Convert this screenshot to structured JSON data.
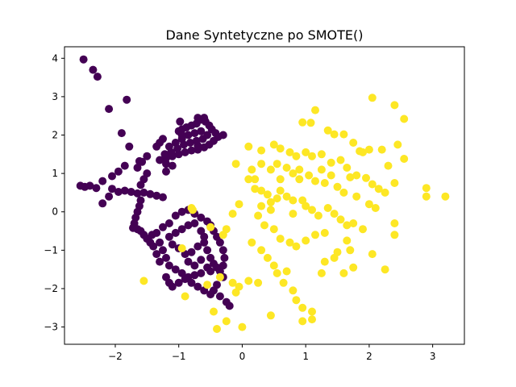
{
  "chart_data": {
    "type": "scatter",
    "title": "Dane Syntetyczne po SMOTE()",
    "xlabel": "",
    "ylabel": "",
    "xlim": [
      -2.8,
      3.5
    ],
    "ylim": [
      -3.45,
      4.3
    ],
    "xticks": [
      -2,
      -1,
      0,
      1,
      2,
      3
    ],
    "xtick_labels": [
      "−2",
      "−1",
      "0",
      "1",
      "2",
      "3"
    ],
    "yticks": [
      -3,
      -2,
      -1,
      0,
      1,
      2,
      3,
      4
    ],
    "ytick_labels": [
      "−3",
      "−2",
      "−1",
      "0",
      "1",
      "2",
      "3",
      "4"
    ],
    "grid": false,
    "legend": "none",
    "series": [
      {
        "color": "#440154",
        "points": [
          [
            -2.5,
            3.97
          ],
          [
            -2.35,
            3.7
          ],
          [
            -2.28,
            3.52
          ],
          [
            -2.1,
            2.68
          ],
          [
            -1.82,
            2.92
          ],
          [
            -1.9,
            2.05
          ],
          [
            -1.78,
            1.7
          ],
          [
            -1.62,
            1.32
          ],
          [
            -1.85,
            1.2
          ],
          [
            -1.95,
            1.05
          ],
          [
            -2.05,
            0.93
          ],
          [
            -2.2,
            0.8
          ],
          [
            -2.55,
            0.68
          ],
          [
            -2.48,
            0.65
          ],
          [
            -2.4,
            0.68
          ],
          [
            -2.3,
            0.62
          ],
          [
            -2.2,
            0.22
          ],
          [
            -2.1,
            0.4
          ],
          [
            -2.05,
            0.6
          ],
          [
            -1.95,
            0.52
          ],
          [
            -1.85,
            0.55
          ],
          [
            -1.75,
            0.52
          ],
          [
            -1.65,
            0.48
          ],
          [
            -1.55,
            0.5
          ],
          [
            -1.45,
            0.46
          ],
          [
            -1.35,
            0.42
          ],
          [
            -1.25,
            0.38
          ],
          [
            -1.6,
            0.7
          ],
          [
            -1.55,
            0.85
          ],
          [
            -1.5,
            1.0
          ],
          [
            -1.65,
            1.15
          ],
          [
            -1.58,
            1.3
          ],
          [
            -1.5,
            1.45
          ],
          [
            -1.6,
            0.3
          ],
          [
            -1.62,
            0.15
          ],
          [
            -1.65,
            0.0
          ],
          [
            -1.68,
            -0.15
          ],
          [
            -1.7,
            -0.3
          ],
          [
            -1.72,
            -0.42
          ],
          [
            -1.65,
            -0.45
          ],
          [
            -1.6,
            -0.5
          ],
          [
            -1.55,
            -0.6
          ],
          [
            -1.5,
            -0.7
          ],
          [
            -1.45,
            -0.8
          ],
          [
            -1.4,
            -0.9
          ],
          [
            -1.42,
            -0.6
          ],
          [
            -1.35,
            -0.55
          ],
          [
            -1.25,
            -0.4
          ],
          [
            -1.15,
            -0.3
          ],
          [
            -1.05,
            -0.1
          ],
          [
            -0.95,
            0.0
          ],
          [
            -0.85,
            0.05
          ],
          [
            -0.75,
            -0.05
          ],
          [
            -0.65,
            -0.15
          ],
          [
            -0.55,
            -0.25
          ],
          [
            -0.5,
            -0.35
          ],
          [
            -0.45,
            -0.5
          ],
          [
            -0.4,
            -0.65
          ],
          [
            -0.35,
            -0.8
          ],
          [
            -0.3,
            -1.0
          ],
          [
            -0.28,
            -1.2
          ],
          [
            -0.3,
            -1.4
          ],
          [
            -0.35,
            -1.55
          ],
          [
            -0.3,
            -1.7
          ],
          [
            -0.4,
            -1.9
          ],
          [
            -0.45,
            -2.05
          ],
          [
            -0.35,
            -2.2
          ],
          [
            -0.25,
            -2.35
          ],
          [
            -0.2,
            -2.45
          ],
          [
            -1.1,
            -0.85
          ],
          [
            -1.0,
            -0.95
          ],
          [
            -0.9,
            -1.1
          ],
          [
            -0.8,
            -1.05
          ],
          [
            -0.7,
            -0.9
          ],
          [
            -0.6,
            -0.8
          ],
          [
            -0.55,
            -1.0
          ],
          [
            -0.5,
            -1.2
          ],
          [
            -0.45,
            -1.35
          ],
          [
            -0.55,
            -1.45
          ],
          [
            -0.65,
            -1.6
          ],
          [
            -0.75,
            -1.65
          ],
          [
            -0.85,
            -1.7
          ],
          [
            -0.95,
            -1.6
          ],
          [
            -1.05,
            -1.5
          ],
          [
            -1.15,
            -1.4
          ],
          [
            -1.2,
            -1.2
          ],
          [
            -1.25,
            -1.0
          ],
          [
            -1.3,
            -0.8
          ],
          [
            -1.15,
            -0.65
          ],
          [
            -1.05,
            -0.55
          ],
          [
            -0.95,
            -0.45
          ],
          [
            -0.85,
            -0.35
          ],
          [
            -0.75,
            -0.3
          ],
          [
            -0.65,
            -0.5
          ],
          [
            -0.6,
            -0.65
          ],
          [
            -1.2,
            -1.7
          ],
          [
            -1.15,
            -1.85
          ],
          [
            -1.1,
            -1.95
          ],
          [
            -1.0,
            -1.85
          ],
          [
            -0.9,
            -1.75
          ],
          [
            -0.8,
            -1.85
          ],
          [
            -0.7,
            -1.95
          ],
          [
            -0.6,
            -2.05
          ],
          [
            -0.5,
            -2.15
          ],
          [
            -1.3,
            -1.3
          ],
          [
            -1.35,
            -1.1
          ],
          [
            -0.85,
            -1.3
          ],
          [
            -0.75,
            -1.4
          ],
          [
            -0.65,
            -1.25
          ],
          [
            -0.5,
            -1.55
          ],
          [
            -0.4,
            -1.45
          ],
          [
            -1.0,
            2.1
          ],
          [
            -0.95,
            2.15
          ],
          [
            -0.88,
            2.2
          ],
          [
            -0.8,
            2.25
          ],
          [
            -0.72,
            2.3
          ],
          [
            -0.65,
            2.4
          ],
          [
            -0.58,
            2.35
          ],
          [
            -0.52,
            2.25
          ],
          [
            -0.48,
            2.15
          ],
          [
            -0.42,
            2.05
          ],
          [
            -0.38,
            1.95
          ],
          [
            -0.45,
            1.85
          ],
          [
            -0.52,
            1.75
          ],
          [
            -0.6,
            1.68
          ],
          [
            -0.7,
            1.62
          ],
          [
            -0.8,
            1.6
          ],
          [
            -0.9,
            1.55
          ],
          [
            -1.0,
            1.5
          ],
          [
            -1.1,
            1.45
          ],
          [
            -1.2,
            1.4
          ],
          [
            -1.15,
            1.7
          ],
          [
            -1.05,
            1.8
          ],
          [
            -0.95,
            1.9
          ],
          [
            -0.85,
            2.0
          ],
          [
            -0.75,
            2.05
          ],
          [
            -0.65,
            2.1
          ],
          [
            -0.55,
            2.0
          ],
          [
            -0.62,
            1.9
          ],
          [
            -0.72,
            1.85
          ],
          [
            -0.82,
            1.8
          ],
          [
            -0.92,
            1.75
          ],
          [
            -1.02,
            1.65
          ],
          [
            -1.12,
            1.55
          ],
          [
            -1.22,
            1.5
          ],
          [
            -1.3,
            1.35
          ],
          [
            -1.2,
            1.25
          ],
          [
            -1.1,
            1.2
          ],
          [
            -0.95,
            2.0
          ],
          [
            -1.25,
            1.9
          ],
          [
            -1.3,
            1.8
          ],
          [
            -1.35,
            1.7
          ],
          [
            -0.98,
            2.35
          ],
          [
            -0.7,
            2.45
          ],
          [
            -0.6,
            2.45
          ],
          [
            -1.2,
            1.05
          ],
          [
            -0.7,
            1.72
          ],
          [
            -0.3,
            2.0
          ]
        ]
      },
      {
        "color": "#fde725",
        "points": [
          [
            2.05,
            2.97
          ],
          [
            2.4,
            2.78
          ],
          [
            2.55,
            2.42
          ],
          [
            1.15,
            2.65
          ],
          [
            0.95,
            2.33
          ],
          [
            1.08,
            2.32
          ],
          [
            1.35,
            2.12
          ],
          [
            1.45,
            2.02
          ],
          [
            1.6,
            2.02
          ],
          [
            1.75,
            1.8
          ],
          [
            1.85,
            1.58
          ],
          [
            1.9,
            1.55
          ],
          [
            2.0,
            1.62
          ],
          [
            2.2,
            1.62
          ],
          [
            2.45,
            1.75
          ],
          [
            2.55,
            1.38
          ],
          [
            2.3,
            1.2
          ],
          [
            0.5,
            1.75
          ],
          [
            0.6,
            1.65
          ],
          [
            0.75,
            1.55
          ],
          [
            0.85,
            1.45
          ],
          [
            1.0,
            1.55
          ],
          [
            1.1,
            1.45
          ],
          [
            1.25,
            1.5
          ],
          [
            1.4,
            1.28
          ],
          [
            1.55,
            1.35
          ],
          [
            1.65,
            1.15
          ],
          [
            1.7,
            0.9
          ],
          [
            1.8,
            0.95
          ],
          [
            1.95,
            0.88
          ],
          [
            2.05,
            0.72
          ],
          [
            2.15,
            0.6
          ],
          [
            2.25,
            0.5
          ],
          [
            2.4,
            0.75
          ],
          [
            2.9,
            0.62
          ],
          [
            2.9,
            0.4
          ],
          [
            3.2,
            0.4
          ],
          [
            0.1,
            1.7
          ],
          [
            0.3,
            1.6
          ],
          [
            0.55,
            1.25
          ],
          [
            0.7,
            1.15
          ],
          [
            0.8,
            1.0
          ],
          [
            0.9,
            0.85
          ],
          [
            1.05,
            0.95
          ],
          [
            1.15,
            0.8
          ],
          [
            1.3,
            0.75
          ],
          [
            1.5,
            0.65
          ],
          [
            1.6,
            0.5
          ],
          [
            1.8,
            0.4
          ],
          [
            2.0,
            0.2
          ],
          [
            2.1,
            0.1
          ],
          [
            2.4,
            -0.3
          ],
          [
            2.4,
            -0.6
          ],
          [
            2.05,
            -1.1
          ],
          [
            2.25,
            -1.5
          ],
          [
            -0.1,
            1.25
          ],
          [
            0.1,
            0.85
          ],
          [
            0.2,
            0.85
          ],
          [
            0.3,
            0.55
          ],
          [
            0.4,
            0.45
          ],
          [
            0.45,
            0.25
          ],
          [
            0.55,
            0.35
          ],
          [
            0.6,
            0.55
          ],
          [
            0.7,
            0.4
          ],
          [
            0.8,
            0.3
          ],
          [
            0.95,
            0.3
          ],
          [
            1.0,
            0.15
          ],
          [
            1.1,
            0.05
          ],
          [
            1.2,
            -0.1
          ],
          [
            1.35,
            0.1
          ],
          [
            1.45,
            -0.05
          ],
          [
            1.55,
            -0.2
          ],
          [
            1.65,
            -0.35
          ],
          [
            1.75,
            -0.3
          ],
          [
            1.9,
            -0.45
          ],
          [
            1.3,
            -0.55
          ],
          [
            1.15,
            -0.6
          ],
          [
            1.0,
            -0.75
          ],
          [
            0.85,
            -0.9
          ],
          [
            0.75,
            -0.8
          ],
          [
            0.6,
            -0.7
          ],
          [
            0.5,
            -0.45
          ],
          [
            0.35,
            -0.35
          ],
          [
            0.25,
            -0.1
          ],
          [
            -0.05,
            0.2
          ],
          [
            -0.15,
            -0.05
          ],
          [
            -0.25,
            -0.45
          ],
          [
            -0.3,
            -0.6
          ],
          [
            0.15,
            -0.8
          ],
          [
            0.3,
            -1.0
          ],
          [
            0.4,
            -1.2
          ],
          [
            0.5,
            -1.4
          ],
          [
            0.55,
            -1.6
          ],
          [
            0.65,
            -1.85
          ],
          [
            0.8,
            -2.05
          ],
          [
            0.85,
            -2.3
          ],
          [
            0.95,
            -2.5
          ],
          [
            1.1,
            -2.6
          ],
          [
            1.1,
            -2.8
          ],
          [
            0.95,
            -2.85
          ],
          [
            0.45,
            -2.7
          ],
          [
            0.0,
            -3.0
          ],
          [
            -0.25,
            -2.85
          ],
          [
            -0.4,
            -3.05
          ],
          [
            -0.45,
            -2.6
          ],
          [
            -0.1,
            -2.1
          ],
          [
            0.1,
            -1.8
          ],
          [
            0.25,
            -1.85
          ],
          [
            -0.05,
            -1.95
          ],
          [
            -0.15,
            -1.85
          ],
          [
            -0.35,
            -1.7
          ],
          [
            -0.55,
            -1.9
          ],
          [
            -0.9,
            -2.2
          ],
          [
            -1.55,
            -1.8
          ],
          [
            -0.8,
            0.1
          ],
          [
            -0.78,
            0.05
          ],
          [
            -0.5,
            -0.4
          ],
          [
            -0.95,
            -0.95
          ],
          [
            1.3,
            -1.3
          ],
          [
            1.45,
            -1.2
          ],
          [
            1.5,
            -1.05
          ],
          [
            1.7,
            -1.0
          ],
          [
            1.65,
            -0.75
          ],
          [
            1.75,
            -1.45
          ],
          [
            1.25,
            -1.6
          ],
          [
            1.6,
            -1.6
          ],
          [
            0.7,
            -1.55
          ],
          [
            0.3,
            0.15
          ],
          [
            0.45,
            0.05
          ],
          [
            0.8,
            -0.05
          ],
          [
            0.2,
            0.6
          ],
          [
            0.15,
            1.1
          ],
          [
            0.45,
            1.1
          ],
          [
            0.6,
            0.85
          ],
          [
            0.3,
            1.25
          ],
          [
            0.9,
            1.1
          ],
          [
            1.25,
            1.1
          ],
          [
            1.4,
            0.95
          ]
        ]
      }
    ]
  }
}
